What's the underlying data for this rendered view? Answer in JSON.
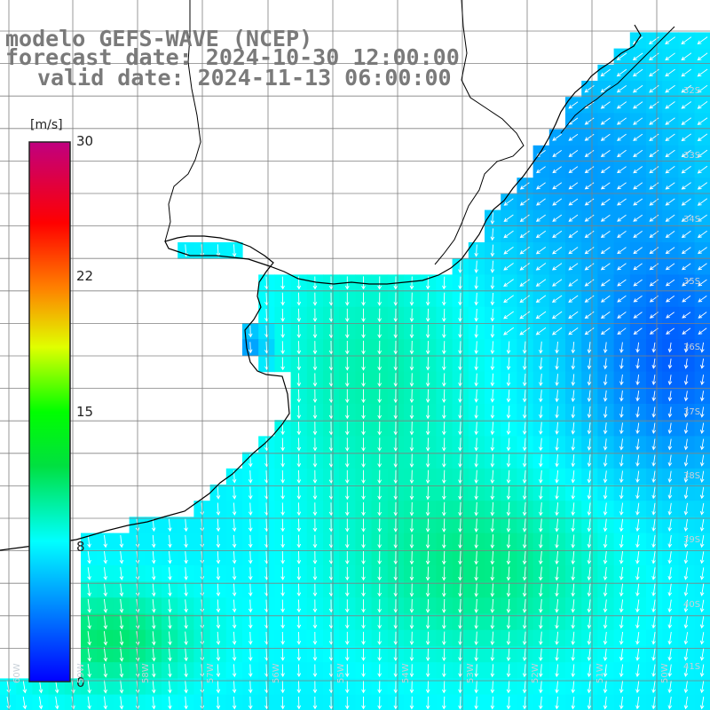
{
  "title": {
    "line1": "modelo GEFS-WAVE (NCEP)",
    "line2": "forecast date: 2024-10-30 12:00:00",
    "line3": "valid date: 2024-11-13 06:00:00"
  },
  "colorbar": {
    "unit": "[m/s]",
    "ticks": [
      "30",
      "22",
      "15",
      "8",
      "0"
    ],
    "min": 0,
    "max": 30,
    "colors": [
      "#0000ff",
      "#00b0ff",
      "#00ffff",
      "#00ff00",
      "#ffff00",
      "#ff8000",
      "#ff0000",
      "#c00080"
    ]
  },
  "map": {
    "lat_labels": [
      "32S",
      "33S",
      "34S",
      "35S",
      "36S",
      "37S",
      "38S",
      "39S",
      "40S",
      "41S"
    ],
    "lon_labels": [
      "60W",
      "59W",
      "58W",
      "57W",
      "56W",
      "55W",
      "54W",
      "53W",
      "52W",
      "51W",
      "50W"
    ],
    "land_color": "#ffffff",
    "coast_color": "#000000",
    "grid_color": "#808080",
    "arrow_color": "#ffffff"
  }
}
